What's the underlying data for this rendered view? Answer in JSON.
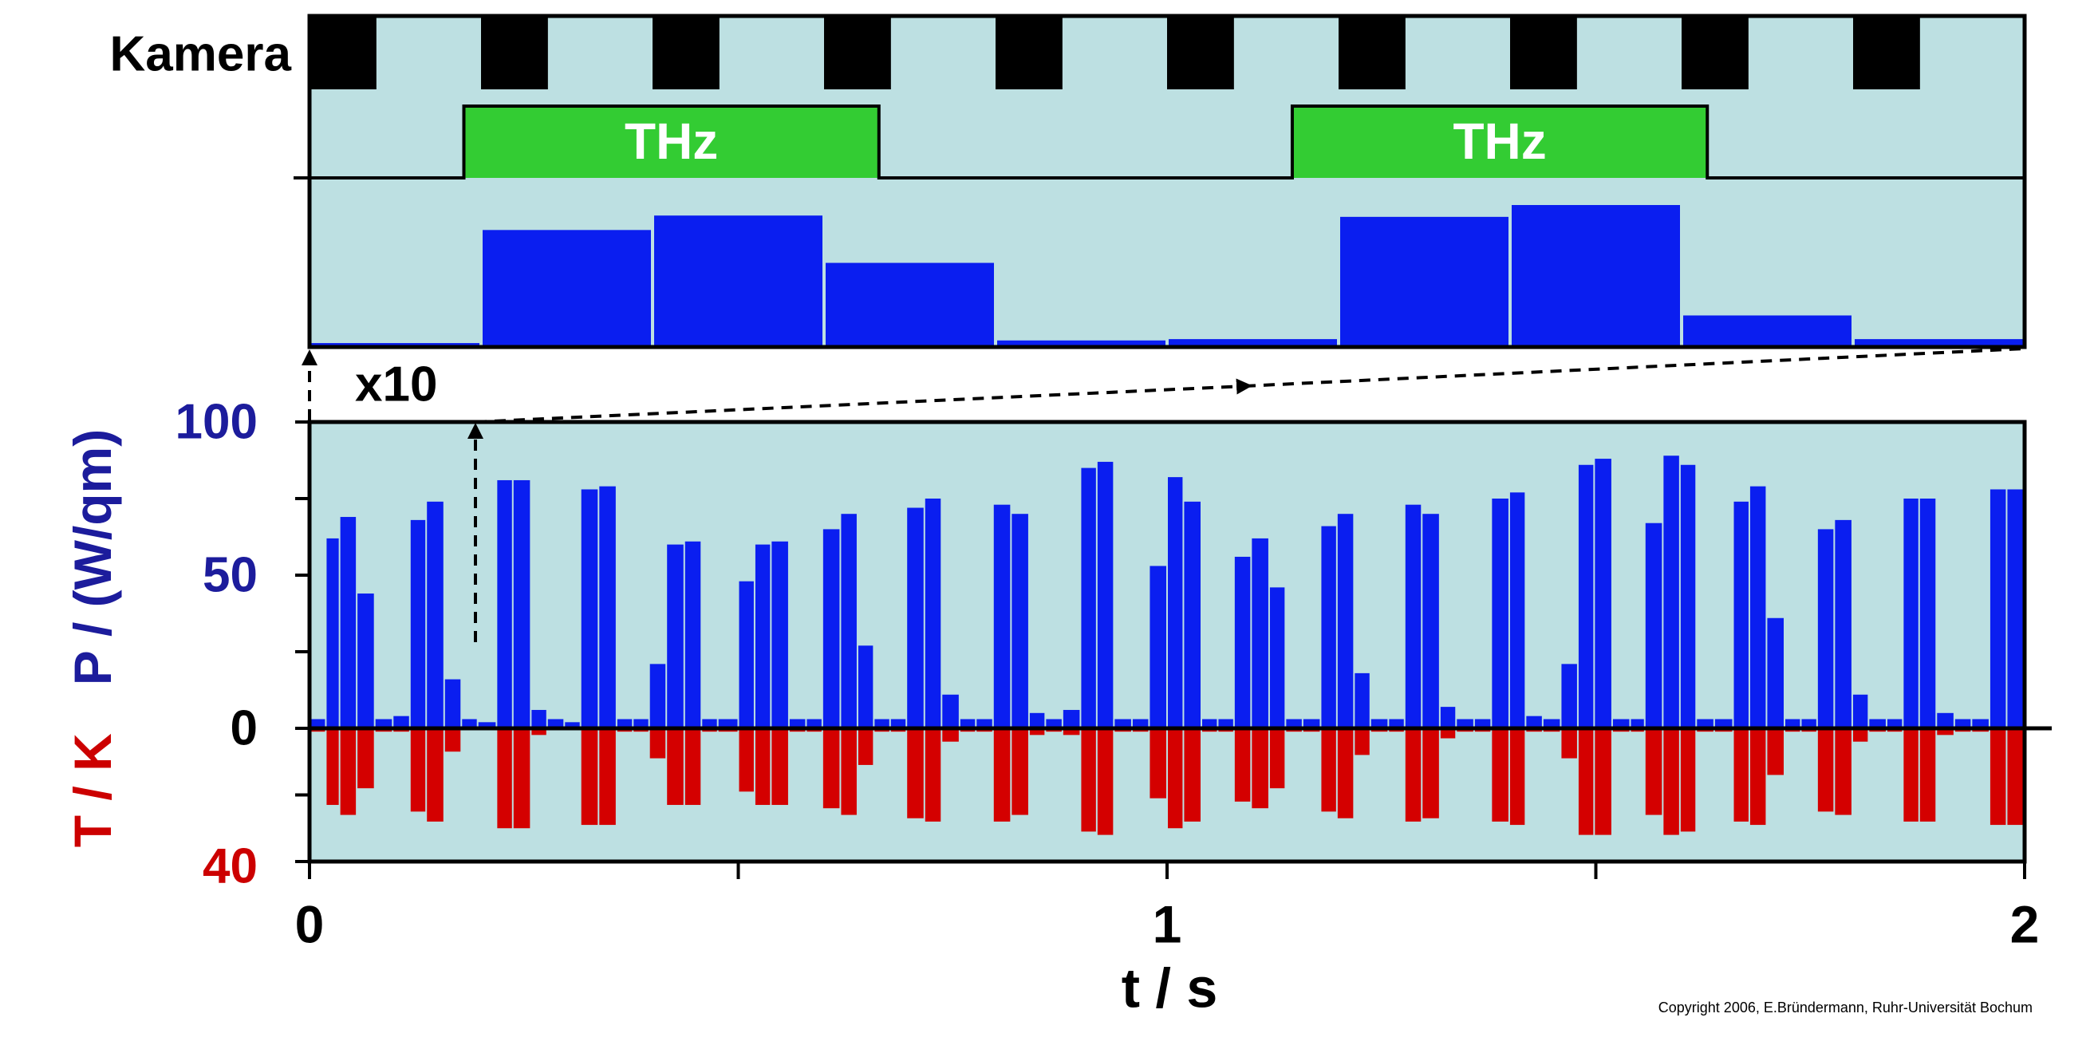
{
  "labels": {
    "camera": "Kamera",
    "thz": "THz",
    "zoom": "x10",
    "copyright": "Copyright 2006, E.Bründermann, Ruhr-Universität Bochum"
  },
  "chart_data": [
    {
      "type": "bar",
      "values": [
        3,
        89,
        100,
        64,
        5,
        6,
        99,
        108,
        24,
        6
      ],
      "color": "#0a1ef0",
      "ylim": [
        0,
        125
      ]
    },
    {
      "type": "bar",
      "xlabel": "t / s",
      "ylabel": "P / (W/qm)",
      "y2label": "T / K",
      "ylabel_color": "#1c1c9c",
      "y2label_color": "#cc0000",
      "xlim": [
        0,
        2
      ],
      "xticks": [
        0,
        1,
        2
      ],
      "xminor": [
        0.5,
        1.5
      ],
      "ylim": [
        0,
        100
      ],
      "yticks": [
        0,
        50,
        100
      ],
      "yminor": [
        25,
        75
      ],
      "y2lim": [
        0,
        40
      ],
      "y2ticks": [
        40
      ],
      "y2minor": [
        20
      ],
      "x": [
        0,
        0.019,
        0.035,
        0.055,
        0.076,
        0.097,
        0.117,
        0.136,
        0.157,
        0.177,
        0.196,
        0.218,
        0.237,
        0.258,
        0.277,
        0.297,
        0.316,
        0.337,
        0.358,
        0.377,
        0.396,
        0.416,
        0.437,
        0.457,
        0.476,
        0.5,
        0.519,
        0.538,
        0.559,
        0.579,
        0.598,
        0.619,
        0.639,
        0.658,
        0.677,
        0.696,
        0.717,
        0.737,
        0.758,
        0.777,
        0.797,
        0.818,
        0.839,
        0.858,
        0.878,
        0.899,
        0.918,
        0.938,
        0.959,
        0.979,
        1.0,
        1.019,
        1.04,
        1.059,
        1.078,
        1.098,
        1.119,
        1.138,
        1.158,
        1.179,
        1.198,
        1.218,
        1.237,
        1.258,
        1.277,
        1.297,
        1.318,
        1.337,
        1.358,
        1.378,
        1.399,
        1.418,
        1.438,
        1.459,
        1.479,
        1.498,
        1.519,
        1.54,
        1.557,
        1.578,
        1.598,
        1.617,
        1.638,
        1.66,
        1.679,
        1.699,
        1.72,
        1.739,
        1.758,
        1.778,
        1.799,
        1.818,
        1.839,
        1.858,
        1.877,
        1.897,
        1.918,
        1.938,
        1.959,
        1.979
      ],
      "series": [
        {
          "color": "#0a1ef0",
          "values": [
            3,
            62,
            69,
            44,
            3,
            4,
            68,
            74,
            16,
            3,
            2,
            81,
            81,
            6,
            3,
            2,
            78,
            79,
            3,
            3,
            21,
            60,
            61,
            3,
            3,
            48,
            60,
            61,
            3,
            3,
            65,
            70,
            27,
            3,
            3,
            72,
            75,
            11,
            3,
            3,
            73,
            70,
            5,
            3,
            6,
            85,
            87,
            3,
            3,
            53,
            82,
            74,
            3,
            3,
            56,
            62,
            46,
            3,
            3,
            66,
            70,
            18,
            3,
            3,
            73,
            70,
            7,
            3,
            3,
            75,
            77,
            4,
            3,
            21,
            86,
            88,
            3,
            3,
            67,
            89,
            86,
            3,
            3,
            74,
            79,
            36,
            3,
            3,
            65,
            68,
            11,
            3,
            3,
            75,
            75,
            5,
            3,
            3,
            78,
            78
          ]
        },
        {
          "color": "#d40000",
          "axis": "y2",
          "values": [
            1,
            23,
            26,
            18,
            1,
            1,
            25,
            28,
            7,
            0,
            0,
            30,
            30,
            2,
            0,
            0,
            29,
            29,
            1,
            1,
            9,
            23,
            23,
            1,
            1,
            19,
            23,
            23,
            1,
            1,
            24,
            26,
            11,
            1,
            1,
            27,
            28,
            4,
            1,
            1,
            28,
            26,
            2,
            1,
            2,
            31,
            32,
            1,
            1,
            21,
            30,
            28,
            1,
            1,
            22,
            24,
            18,
            1,
            1,
            25,
            27,
            8,
            1,
            1,
            28,
            27,
            3,
            1,
            1,
            28,
            29,
            1,
            1,
            9,
            32,
            32,
            1,
            1,
            26,
            32,
            31,
            1,
            1,
            28,
            29,
            14,
            1,
            1,
            25,
            26,
            4,
            1,
            1,
            28,
            28,
            2,
            1,
            1,
            29,
            29
          ]
        }
      ]
    }
  ]
}
